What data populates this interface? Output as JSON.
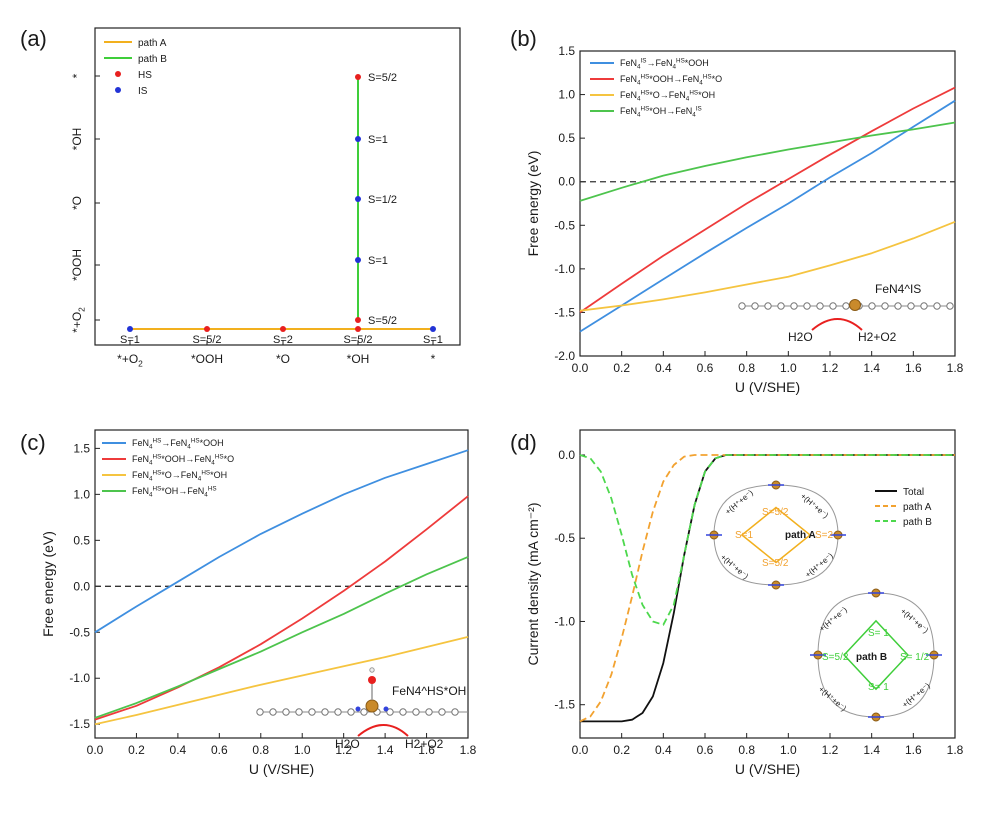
{
  "panels": {
    "a": {
      "label": "(a)",
      "x_categories": [
        "*+O2",
        "*OOH",
        "*O",
        "*OH",
        "*"
      ],
      "y_categories": [
        "*+O2",
        "*OOH",
        "*O",
        "*OH",
        "*"
      ],
      "legend": [
        "path A",
        "path B",
        "HS",
        "IS"
      ],
      "colors": {
        "pathA": "#f2b01e",
        "pathB": "#3fce3a",
        "HS": "#e8201f",
        "IS": "#2233d6"
      },
      "pathA_points": [
        {
          "x": "*+O2",
          "spin": "S=1",
          "state": "IS"
        },
        {
          "x": "*OOH",
          "spin": "S=5/2",
          "state": "HS"
        },
        {
          "x": "*O",
          "spin": "S=2",
          "state": "HS"
        },
        {
          "x": "*OH",
          "spin": "S=5/2",
          "state": "HS"
        },
        {
          "x": "*",
          "spin": "S=1",
          "state": "IS"
        }
      ],
      "pathB_points": [
        {
          "y": "*+O2",
          "spin": "S=5/2",
          "state": "HS"
        },
        {
          "y": "*OOH",
          "spin": "S=1",
          "state": "IS"
        },
        {
          "y": "*O",
          "spin": "S=1/2",
          "state": "IS"
        },
        {
          "y": "*OH",
          "spin": "S=1",
          "state": "IS"
        },
        {
          "y": "*",
          "spin": "S=5/2",
          "state": "HS"
        }
      ]
    },
    "b": {
      "label": "(b)",
      "inset_label": "FeN4^IS",
      "inset_reaction": {
        "left": "H2O",
        "right": "H2+O2"
      }
    },
    "c": {
      "label": "(c)",
      "inset_label": "FeN4^HS*OH",
      "inset_reaction": {
        "left": "H2O",
        "right": "H2+O2"
      }
    },
    "d": {
      "label": "(d)",
      "cycleA": {
        "title": "path A",
        "top": "S=5/2",
        "left": "S=1",
        "right": "S=2",
        "bottom": "S=5/2",
        "step": "+(H⁺+e⁻)"
      },
      "cycleB": {
        "title": "path B",
        "top": "S= 1",
        "left": "S=5/2",
        "right": "S= 1/2",
        "bottom": "S= 1",
        "step": "+(H⁺+e⁻)"
      }
    }
  },
  "chart_data": [
    {
      "panel": "b",
      "type": "line",
      "xlabel": "U (V/SHE)",
      "ylabel": "Free energy (eV)",
      "xlim": [
        0.0,
        1.8
      ],
      "ylim": [
        -2.0,
        1.5
      ],
      "xticks": [
        "0.0",
        "0.2",
        "0.4",
        "0.6",
        "0.8",
        "1.0",
        "1.2",
        "1.4",
        "1.6",
        "1.8"
      ],
      "yticks": [
        "-2.0",
        "-1.5",
        "-1.0",
        "-0.5",
        "0.0",
        "0.5",
        "1.0",
        "1.5"
      ],
      "hline": 0.0,
      "legend_position": "top-left",
      "series": [
        {
          "name": "FeN4^IS→FeN4^HS*OOH",
          "color": "#3f8fe0",
          "x": [
            0,
            0.2,
            0.4,
            0.6,
            0.8,
            1.0,
            1.2,
            1.4,
            1.6,
            1.8
          ],
          "values": [
            -1.72,
            -1.42,
            -1.12,
            -0.82,
            -0.53,
            -0.25,
            0.05,
            0.33,
            0.63,
            0.93
          ]
        },
        {
          "name": "FeN4^HS*OOH→FeN4^HS*O",
          "color": "#ee3b3b",
          "x": [
            0,
            0.2,
            0.4,
            0.6,
            0.8,
            1.0,
            1.2,
            1.4,
            1.6,
            1.8
          ],
          "values": [
            -1.5,
            -1.17,
            -0.85,
            -0.55,
            -0.25,
            0.03,
            0.31,
            0.58,
            0.84,
            1.08
          ]
        },
        {
          "name": "FeN4^HS*O→FeN4^HS*OH",
          "color": "#f5c440",
          "x": [
            0,
            0.2,
            0.4,
            0.6,
            0.8,
            1.0,
            1.2,
            1.4,
            1.6,
            1.8
          ],
          "values": [
            -1.48,
            -1.42,
            -1.35,
            -1.27,
            -1.18,
            -1.09,
            -0.96,
            -0.82,
            -0.65,
            -0.46
          ]
        },
        {
          "name": "FeN4^HS*OH→FeN4^IS",
          "color": "#4dc44d",
          "x": [
            0,
            0.2,
            0.4,
            0.6,
            0.8,
            1.0,
            1.2,
            1.4,
            1.6,
            1.8
          ],
          "values": [
            -0.22,
            -0.07,
            0.07,
            0.18,
            0.28,
            0.37,
            0.45,
            0.53,
            0.6,
            0.68
          ]
        }
      ]
    },
    {
      "panel": "c",
      "type": "line",
      "xlabel": "U (V/SHE)",
      "ylabel": "Free energy (eV)",
      "xlim": [
        0.0,
        1.8
      ],
      "ylim": [
        -1.65,
        1.7
      ],
      "xticks": [
        "0.0",
        "0.2",
        "0.4",
        "0.6",
        "0.8",
        "1.0",
        "1.2",
        "1.4",
        "1.6",
        "1.8"
      ],
      "yticks": [
        "-1.5",
        "-1.0",
        "-0.5",
        "0.0",
        "0.5",
        "1.0",
        "1.5"
      ],
      "hline": 0.0,
      "legend_position": "top-left",
      "series": [
        {
          "name": "FeN4^HS→FeN4^HS*OOH",
          "color": "#3f8fe0",
          "x": [
            0,
            0.2,
            0.4,
            0.6,
            0.8,
            1.0,
            1.2,
            1.4,
            1.6,
            1.8
          ],
          "values": [
            -0.5,
            -0.22,
            0.05,
            0.32,
            0.57,
            0.79,
            1.0,
            1.18,
            1.33,
            1.48
          ]
        },
        {
          "name": "FeN4^HS*OOH→FeN4^HS*O",
          "color": "#ee3b3b",
          "x": [
            0,
            0.2,
            0.4,
            0.6,
            0.8,
            1.0,
            1.2,
            1.4,
            1.6,
            1.8
          ],
          "values": [
            -1.45,
            -1.3,
            -1.1,
            -0.88,
            -0.63,
            -0.35,
            -0.05,
            0.27,
            0.62,
            0.98
          ]
        },
        {
          "name": "FeN4^HS*O→FeN4^HS*OH",
          "color": "#f5c440",
          "x": [
            0,
            0.2,
            0.4,
            0.6,
            0.8,
            1.0,
            1.2,
            1.4,
            1.6,
            1.8
          ],
          "values": [
            -1.5,
            -1.4,
            -1.29,
            -1.18,
            -1.07,
            -0.97,
            -0.87,
            -0.77,
            -0.66,
            -0.55
          ]
        },
        {
          "name": "FeN4^HS*OH→FeN4^HS",
          "color": "#4dc44d",
          "x": [
            0,
            0.2,
            0.4,
            0.6,
            0.8,
            1.0,
            1.2,
            1.4,
            1.6,
            1.8
          ],
          "values": [
            -1.43,
            -1.27,
            -1.09,
            -0.9,
            -0.71,
            -0.5,
            -0.3,
            -0.08,
            0.13,
            0.32
          ]
        }
      ]
    },
    {
      "panel": "d",
      "type": "line",
      "xlabel": "U (V/SHE)",
      "ylabel": "Current density (mA cm⁻²)",
      "xlim": [
        0.0,
        1.8
      ],
      "ylim": [
        -1.7,
        0.15
      ],
      "xticks": [
        "0.0",
        "0.2",
        "0.4",
        "0.6",
        "0.8",
        "1.0",
        "1.2",
        "1.4",
        "1.6",
        "1.8"
      ],
      "yticks": [
        "-1.5",
        "-1.0",
        "-0.5",
        "0.0"
      ],
      "legend_position": "right",
      "series": [
        {
          "name": "Total",
          "color": "#111111",
          "dash": "",
          "x": [
            0,
            0.1,
            0.2,
            0.25,
            0.3,
            0.35,
            0.4,
            0.45,
            0.5,
            0.55,
            0.6,
            0.65,
            0.7,
            0.8,
            1.0,
            1.4,
            1.8
          ],
          "values": [
            -1.6,
            -1.6,
            -1.6,
            -1.59,
            -1.55,
            -1.45,
            -1.25,
            -0.95,
            -0.6,
            -0.3,
            -0.1,
            -0.02,
            0.0,
            0.0,
            0.0,
            0.0,
            0.0
          ]
        },
        {
          "name": "path A",
          "color": "#f2a230",
          "dash": "7,4",
          "x": [
            0,
            0.05,
            0.1,
            0.15,
            0.2,
            0.25,
            0.3,
            0.35,
            0.4,
            0.45,
            0.5,
            0.55,
            0.6,
            0.8,
            1.0,
            1.4,
            1.8
          ],
          "values": [
            -1.6,
            -1.57,
            -1.48,
            -1.32,
            -1.1,
            -0.85,
            -0.58,
            -0.34,
            -0.16,
            -0.06,
            -0.01,
            0.0,
            0.0,
            0.0,
            0.0,
            0.0,
            0.0
          ]
        },
        {
          "name": "path B",
          "color": "#4dd84d",
          "dash": "7,4",
          "x": [
            0,
            0.05,
            0.1,
            0.15,
            0.2,
            0.25,
            0.3,
            0.35,
            0.4,
            0.45,
            0.5,
            0.55,
            0.6,
            0.65,
            0.7,
            0.8,
            1.0,
            1.4,
            1.8
          ],
          "values": [
            0.0,
            -0.02,
            -0.1,
            -0.26,
            -0.48,
            -0.72,
            -0.9,
            -1.0,
            -1.02,
            -0.9,
            -0.6,
            -0.3,
            -0.1,
            -0.02,
            0.0,
            0.0,
            0.0,
            0.0,
            0.0
          ]
        }
      ]
    }
  ]
}
